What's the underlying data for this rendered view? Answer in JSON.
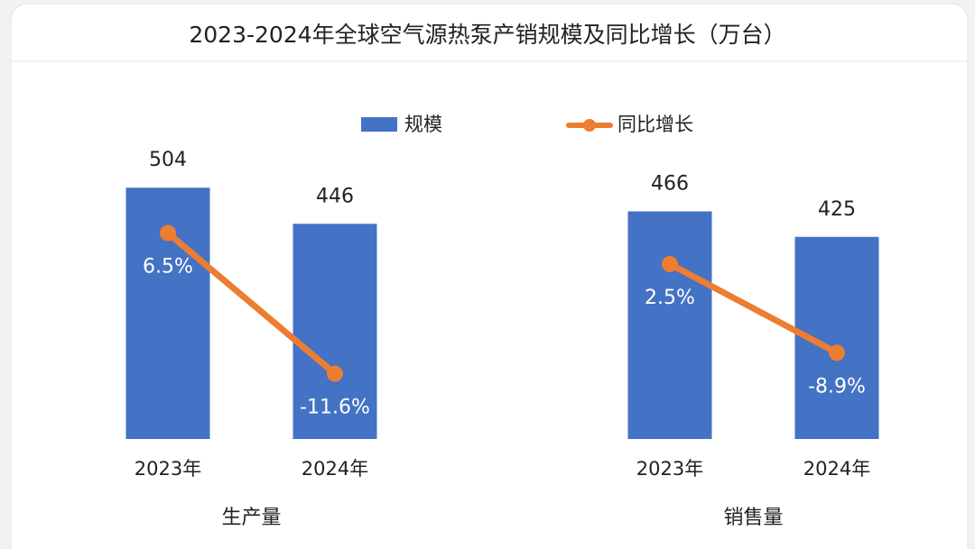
{
  "chart_data": {
    "type": "bar",
    "title": "2023-2024年全球空气源热泵产销规模及同比增长（万台）",
    "categories": [
      "2023年",
      "2024年",
      "2023年",
      "2024年"
    ],
    "groups": [
      "生产量",
      "销售量"
    ],
    "series": [
      {
        "name": "规模",
        "type": "bar",
        "color": "#4472c4",
        "values": [
          504,
          446,
          466,
          425
        ]
      },
      {
        "name": "同比增长",
        "type": "line",
        "axis": "y2",
        "color": "#ed7d31",
        "values": [
          6.5,
          -11.6,
          2.5,
          -8.9
        ],
        "value_labels": [
          "6.5%",
          "-11.6%",
          "2.5%",
          "-8.9%"
        ]
      }
    ],
    "ylim": [
      100,
      600
    ],
    "y2lim": [
      -20,
      20
    ]
  }
}
